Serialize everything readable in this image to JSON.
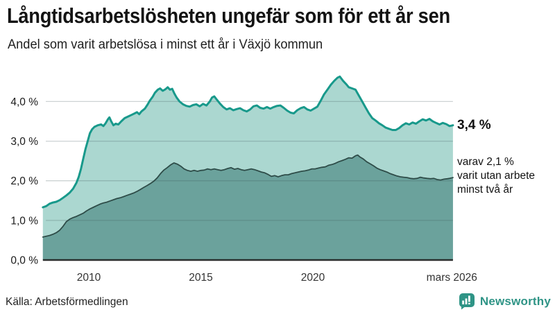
{
  "header": {
    "title": "Långtidsarbetslösheten ungefär som för ett år sen",
    "subtitle": "Andel som varit arbetslösa i minst ett år i Växjö kommun"
  },
  "source": {
    "label": "Källa: Arbetsförmedlingen"
  },
  "branding": {
    "name": "Newsworthy",
    "icon": "bar-chart-speech-bubble",
    "color": "#2f9486"
  },
  "colors": {
    "total_line": "#18998b",
    "total_fill": "#abd7d0",
    "two_years_line": "#2e4c48",
    "two_years_fill": "#6ba29c",
    "baseline": "#2a2e2d",
    "gridline": "rgba(55,80,85,0.25)"
  },
  "chart_data": {
    "type": "area",
    "title": "Långtidsarbetslösheten ungefär som för ett år sen",
    "subtitle": "Andel som varit arbetslösa i minst ett år i Växjö kommun",
    "unit": "%",
    "grid": true,
    "legend_position": "direct-annotations-right",
    "x_axis": {
      "min": 2007.95,
      "max": 2026.25,
      "ticks": [
        {
          "label": "2010",
          "value": 2010
        },
        {
          "label": "2015",
          "value": 2015
        },
        {
          "label": "2020",
          "value": 2020
        },
        {
          "label": "mars 2026",
          "value": 2026.2
        }
      ]
    },
    "y_axis": {
      "min": 0,
      "max": 4.7,
      "ticks": [
        {
          "label": "0,0 %",
          "value": 0
        },
        {
          "label": "1,0 %",
          "value": 1
        },
        {
          "label": "2,0 %",
          "value": 2
        },
        {
          "label": "3,0 %",
          "value": 3
        },
        {
          "label": "4,0 %",
          "value": 4
        }
      ]
    },
    "annotations": {
      "total_value_label": "3,4 %",
      "two_years_lines": [
        "varav 2,1 %",
        "varit utan arbete",
        "minst två år"
      ]
    },
    "series": [
      {
        "id": "total",
        "name": "Arbetslösa minst ett år",
        "latest_value": 3.4,
        "line_color": "#18998b",
        "fill_color": "#abd7d0",
        "points": [
          [
            2007.95,
            1.33
          ],
          [
            2008.1,
            1.36
          ],
          [
            2008.25,
            1.42
          ],
          [
            2008.4,
            1.45
          ],
          [
            2008.55,
            1.47
          ],
          [
            2008.7,
            1.51
          ],
          [
            2008.85,
            1.57
          ],
          [
            2009.0,
            1.63
          ],
          [
            2009.15,
            1.7
          ],
          [
            2009.3,
            1.8
          ],
          [
            2009.45,
            1.95
          ],
          [
            2009.55,
            2.1
          ],
          [
            2009.65,
            2.3
          ],
          [
            2009.75,
            2.55
          ],
          [
            2009.85,
            2.8
          ],
          [
            2009.95,
            3.0
          ],
          [
            2010.05,
            3.2
          ],
          [
            2010.15,
            3.3
          ],
          [
            2010.25,
            3.36
          ],
          [
            2010.4,
            3.4
          ],
          [
            2010.55,
            3.42
          ],
          [
            2010.65,
            3.38
          ],
          [
            2010.75,
            3.45
          ],
          [
            2010.85,
            3.55
          ],
          [
            2010.92,
            3.6
          ],
          [
            2011.0,
            3.5
          ],
          [
            2011.1,
            3.4
          ],
          [
            2011.2,
            3.44
          ],
          [
            2011.32,
            3.42
          ],
          [
            2011.45,
            3.5
          ],
          [
            2011.6,
            3.58
          ],
          [
            2011.75,
            3.62
          ],
          [
            2011.9,
            3.66
          ],
          [
            2012.05,
            3.7
          ],
          [
            2012.15,
            3.73
          ],
          [
            2012.25,
            3.68
          ],
          [
            2012.35,
            3.75
          ],
          [
            2012.5,
            3.82
          ],
          [
            2012.62,
            3.92
          ],
          [
            2012.72,
            4.02
          ],
          [
            2012.85,
            4.12
          ],
          [
            2012.95,
            4.22
          ],
          [
            2013.08,
            4.3
          ],
          [
            2013.18,
            4.33
          ],
          [
            2013.3,
            4.27
          ],
          [
            2013.42,
            4.31
          ],
          [
            2013.52,
            4.36
          ],
          [
            2013.62,
            4.3
          ],
          [
            2013.72,
            4.32
          ],
          [
            2013.82,
            4.2
          ],
          [
            2013.92,
            4.1
          ],
          [
            2014.05,
            4.0
          ],
          [
            2014.2,
            3.93
          ],
          [
            2014.35,
            3.89
          ],
          [
            2014.5,
            3.87
          ],
          [
            2014.65,
            3.91
          ],
          [
            2014.8,
            3.93
          ],
          [
            2014.95,
            3.88
          ],
          [
            2015.1,
            3.94
          ],
          [
            2015.25,
            3.9
          ],
          [
            2015.4,
            4.0
          ],
          [
            2015.5,
            4.1
          ],
          [
            2015.6,
            4.13
          ],
          [
            2015.72,
            4.04
          ],
          [
            2015.85,
            3.95
          ],
          [
            2016.0,
            3.86
          ],
          [
            2016.15,
            3.8
          ],
          [
            2016.3,
            3.83
          ],
          [
            2016.45,
            3.78
          ],
          [
            2016.6,
            3.81
          ],
          [
            2016.75,
            3.83
          ],
          [
            2016.9,
            3.78
          ],
          [
            2017.05,
            3.75
          ],
          [
            2017.2,
            3.8
          ],
          [
            2017.35,
            3.88
          ],
          [
            2017.5,
            3.9
          ],
          [
            2017.65,
            3.84
          ],
          [
            2017.8,
            3.82
          ],
          [
            2017.95,
            3.86
          ],
          [
            2018.1,
            3.82
          ],
          [
            2018.25,
            3.86
          ],
          [
            2018.4,
            3.89
          ],
          [
            2018.55,
            3.9
          ],
          [
            2018.7,
            3.84
          ],
          [
            2018.85,
            3.77
          ],
          [
            2019.0,
            3.72
          ],
          [
            2019.15,
            3.7
          ],
          [
            2019.3,
            3.78
          ],
          [
            2019.45,
            3.83
          ],
          [
            2019.6,
            3.86
          ],
          [
            2019.75,
            3.8
          ],
          [
            2019.9,
            3.77
          ],
          [
            2020.05,
            3.82
          ],
          [
            2020.2,
            3.87
          ],
          [
            2020.35,
            4.02
          ],
          [
            2020.5,
            4.18
          ],
          [
            2020.65,
            4.3
          ],
          [
            2020.8,
            4.42
          ],
          [
            2020.95,
            4.52
          ],
          [
            2021.1,
            4.6
          ],
          [
            2021.2,
            4.63
          ],
          [
            2021.35,
            4.52
          ],
          [
            2021.5,
            4.43
          ],
          [
            2021.6,
            4.36
          ],
          [
            2021.75,
            4.33
          ],
          [
            2021.9,
            4.3
          ],
          [
            2022.05,
            4.15
          ],
          [
            2022.2,
            4.0
          ],
          [
            2022.35,
            3.85
          ],
          [
            2022.5,
            3.7
          ],
          [
            2022.65,
            3.58
          ],
          [
            2022.8,
            3.52
          ],
          [
            2022.95,
            3.45
          ],
          [
            2023.1,
            3.4
          ],
          [
            2023.25,
            3.34
          ],
          [
            2023.4,
            3.31
          ],
          [
            2023.55,
            3.28
          ],
          [
            2023.7,
            3.28
          ],
          [
            2023.85,
            3.33
          ],
          [
            2024.0,
            3.4
          ],
          [
            2024.15,
            3.45
          ],
          [
            2024.3,
            3.42
          ],
          [
            2024.45,
            3.47
          ],
          [
            2024.6,
            3.44
          ],
          [
            2024.75,
            3.5
          ],
          [
            2024.9,
            3.55
          ],
          [
            2025.05,
            3.52
          ],
          [
            2025.2,
            3.56
          ],
          [
            2025.35,
            3.5
          ],
          [
            2025.5,
            3.46
          ],
          [
            2025.65,
            3.42
          ],
          [
            2025.8,
            3.46
          ],
          [
            2025.95,
            3.43
          ],
          [
            2026.1,
            3.38
          ],
          [
            2026.25,
            3.4
          ]
        ]
      },
      {
        "id": "two_years",
        "name": "Varav utan arbete minst två år",
        "latest_value": 2.1,
        "line_color": "#2e4c48",
        "fill_color": "#6ba29c",
        "points": [
          [
            2007.95,
            0.58
          ],
          [
            2008.1,
            0.6
          ],
          [
            2008.25,
            0.62
          ],
          [
            2008.4,
            0.65
          ],
          [
            2008.55,
            0.69
          ],
          [
            2008.7,
            0.75
          ],
          [
            2008.85,
            0.85
          ],
          [
            2009.0,
            0.97
          ],
          [
            2009.15,
            1.03
          ],
          [
            2009.3,
            1.07
          ],
          [
            2009.45,
            1.1
          ],
          [
            2009.6,
            1.14
          ],
          [
            2009.75,
            1.18
          ],
          [
            2009.9,
            1.24
          ],
          [
            2010.05,
            1.29
          ],
          [
            2010.2,
            1.33
          ],
          [
            2010.35,
            1.37
          ],
          [
            2010.5,
            1.41
          ],
          [
            2010.65,
            1.44
          ],
          [
            2010.8,
            1.46
          ],
          [
            2010.95,
            1.49
          ],
          [
            2011.1,
            1.52
          ],
          [
            2011.25,
            1.55
          ],
          [
            2011.4,
            1.57
          ],
          [
            2011.55,
            1.6
          ],
          [
            2011.7,
            1.63
          ],
          [
            2011.85,
            1.66
          ],
          [
            2012.0,
            1.69
          ],
          [
            2012.15,
            1.73
          ],
          [
            2012.3,
            1.78
          ],
          [
            2012.45,
            1.83
          ],
          [
            2012.6,
            1.88
          ],
          [
            2012.75,
            1.93
          ],
          [
            2012.9,
            1.99
          ],
          [
            2013.05,
            2.07
          ],
          [
            2013.2,
            2.18
          ],
          [
            2013.35,
            2.27
          ],
          [
            2013.5,
            2.33
          ],
          [
            2013.65,
            2.4
          ],
          [
            2013.8,
            2.45
          ],
          [
            2013.95,
            2.42
          ],
          [
            2014.1,
            2.37
          ],
          [
            2014.25,
            2.3
          ],
          [
            2014.4,
            2.26
          ],
          [
            2014.55,
            2.24
          ],
          [
            2014.7,
            2.26
          ],
          [
            2014.85,
            2.24
          ],
          [
            2015.0,
            2.26
          ],
          [
            2015.15,
            2.27
          ],
          [
            2015.3,
            2.3
          ],
          [
            2015.45,
            2.28
          ],
          [
            2015.6,
            2.3
          ],
          [
            2015.75,
            2.28
          ],
          [
            2015.9,
            2.26
          ],
          [
            2016.05,
            2.28
          ],
          [
            2016.2,
            2.31
          ],
          [
            2016.35,
            2.33
          ],
          [
            2016.5,
            2.29
          ],
          [
            2016.65,
            2.31
          ],
          [
            2016.8,
            2.28
          ],
          [
            2016.95,
            2.26
          ],
          [
            2017.1,
            2.28
          ],
          [
            2017.25,
            2.3
          ],
          [
            2017.4,
            2.28
          ],
          [
            2017.55,
            2.25
          ],
          [
            2017.7,
            2.22
          ],
          [
            2017.85,
            2.2
          ],
          [
            2018.0,
            2.16
          ],
          [
            2018.15,
            2.11
          ],
          [
            2018.3,
            2.13
          ],
          [
            2018.45,
            2.1
          ],
          [
            2018.6,
            2.13
          ],
          [
            2018.75,
            2.15
          ],
          [
            2018.9,
            2.15
          ],
          [
            2019.05,
            2.18
          ],
          [
            2019.2,
            2.2
          ],
          [
            2019.35,
            2.22
          ],
          [
            2019.5,
            2.24
          ],
          [
            2019.65,
            2.25
          ],
          [
            2019.8,
            2.27
          ],
          [
            2019.95,
            2.3
          ],
          [
            2020.1,
            2.3
          ],
          [
            2020.25,
            2.32
          ],
          [
            2020.4,
            2.34
          ],
          [
            2020.55,
            2.35
          ],
          [
            2020.7,
            2.39
          ],
          [
            2020.85,
            2.41
          ],
          [
            2021.0,
            2.44
          ],
          [
            2021.15,
            2.48
          ],
          [
            2021.3,
            2.51
          ],
          [
            2021.45,
            2.54
          ],
          [
            2021.6,
            2.58
          ],
          [
            2021.75,
            2.57
          ],
          [
            2021.9,
            2.63
          ],
          [
            2022.0,
            2.65
          ],
          [
            2022.1,
            2.6
          ],
          [
            2022.25,
            2.55
          ],
          [
            2022.4,
            2.48
          ],
          [
            2022.55,
            2.43
          ],
          [
            2022.7,
            2.38
          ],
          [
            2022.85,
            2.32
          ],
          [
            2023.0,
            2.28
          ],
          [
            2023.15,
            2.25
          ],
          [
            2023.3,
            2.22
          ],
          [
            2023.45,
            2.18
          ],
          [
            2023.6,
            2.15
          ],
          [
            2023.75,
            2.12
          ],
          [
            2023.9,
            2.1
          ],
          [
            2024.05,
            2.09
          ],
          [
            2024.2,
            2.08
          ],
          [
            2024.35,
            2.06
          ],
          [
            2024.5,
            2.05
          ],
          [
            2024.65,
            2.06
          ],
          [
            2024.8,
            2.09
          ],
          [
            2024.95,
            2.07
          ],
          [
            2025.1,
            2.06
          ],
          [
            2025.25,
            2.05
          ],
          [
            2025.4,
            2.06
          ],
          [
            2025.55,
            2.03
          ],
          [
            2025.7,
            2.02
          ],
          [
            2025.85,
            2.04
          ],
          [
            2026.0,
            2.05
          ],
          [
            2026.1,
            2.06
          ],
          [
            2026.25,
            2.08
          ]
        ]
      }
    ]
  }
}
